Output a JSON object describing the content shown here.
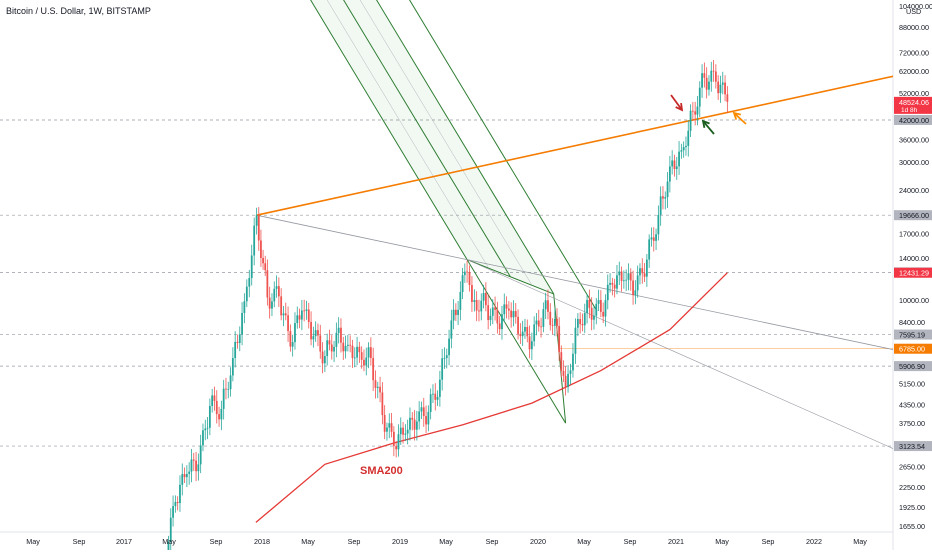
{
  "header": {
    "title": "Bitcoin / U.S. Dollar, 1W, BITSTAMP"
  },
  "chart_data": {
    "type": "candlestick",
    "title": "Bitcoin / U.S. Dollar, 1W, BITSTAMP",
    "yscale": "log",
    "currency": "USD",
    "ylim": [
      1600,
      105000
    ],
    "grid": false,
    "x_ticks": [
      "May",
      "Sep",
      "2017",
      "May",
      "Sep",
      "2018",
      "May",
      "Sep",
      "2019",
      "May",
      "Sep",
      "2020",
      "May",
      "Sep",
      "2021",
      "May",
      "Sep",
      "2022",
      "May"
    ],
    "y_ticks": [
      "104000.00",
      "88000.00",
      "72000.00",
      "62000.00",
      "52000.00",
      "42000.00",
      "36000.00",
      "30000.00",
      "24000.00",
      "19666.00",
      "17000.00",
      "14000.00",
      "12467.74",
      "10000.00",
      "8400.00",
      "7595.19",
      "5906.90",
      "5150.00",
      "4350.00",
      "3750.00",
      "3123.54",
      "2650.00",
      "2250.00",
      "1925.00",
      "1655.00"
    ],
    "price_labels": [
      {
        "value": "48524.06",
        "sub": "1d 8h",
        "color": "#f23645"
      },
      {
        "value": "42000.00",
        "color": "#b2b5be"
      },
      {
        "value": "19666.00",
        "color": "#b2b5be"
      },
      {
        "value": "12467.74",
        "color": "#b2b5be"
      },
      {
        "value": "12431.29",
        "color": "#f23645"
      },
      {
        "value": "7595.19",
        "color": "#b2b5be"
      },
      {
        "value": "6785.00",
        "color": "#f57c00"
      },
      {
        "value": "5906.90",
        "color": "#b2b5be"
      },
      {
        "value": "3123.54",
        "color": "#b2b5be"
      }
    ],
    "horizontal_levels": [
      42000,
      19666,
      12467.74,
      7595.19,
      5906.9,
      3123.54
    ],
    "weekly_closes": [
      {
        "date": "2017-04",
        "close": 1200
      },
      {
        "date": "2017-05",
        "close": 2000
      },
      {
        "date": "2017-06",
        "close": 2500
      },
      {
        "date": "2017-07",
        "close": 2700
      },
      {
        "date": "2017-08",
        "close": 4300
      },
      {
        "date": "2017-09",
        "close": 4200
      },
      {
        "date": "2017-10",
        "close": 6300
      },
      {
        "date": "2017-11",
        "close": 9900
      },
      {
        "date": "2017-12-17",
        "close": 19666
      },
      {
        "date": "2018-01",
        "close": 10200
      },
      {
        "date": "2018-02",
        "close": 10300
      },
      {
        "date": "2018-03",
        "close": 6900
      },
      {
        "date": "2018-04",
        "close": 9200
      },
      {
        "date": "2018-05",
        "close": 7500
      },
      {
        "date": "2018-06",
        "close": 6400
      },
      {
        "date": "2018-07",
        "close": 7700
      },
      {
        "date": "2018-08",
        "close": 7000
      },
      {
        "date": "2018-09",
        "close": 6600
      },
      {
        "date": "2018-10",
        "close": 6300
      },
      {
        "date": "2018-11",
        "close": 4000
      },
      {
        "date": "2018-12-15",
        "close": 3123.54
      },
      {
        "date": "2019-01",
        "close": 3450
      },
      {
        "date": "2019-02",
        "close": 3800
      },
      {
        "date": "2019-03",
        "close": 4100
      },
      {
        "date": "2019-04",
        "close": 5300
      },
      {
        "date": "2019-05",
        "close": 8500
      },
      {
        "date": "2019-06-26",
        "close": 12500
      },
      {
        "date": "2019-07",
        "close": 10000
      },
      {
        "date": "2019-08",
        "close": 9600
      },
      {
        "date": "2019-09",
        "close": 8300
      },
      {
        "date": "2019-10",
        "close": 9200
      },
      {
        "date": "2019-11",
        "close": 7500
      },
      {
        "date": "2019-12",
        "close": 7200
      },
      {
        "date": "2020-01",
        "close": 9300
      },
      {
        "date": "2020-02",
        "close": 8600
      },
      {
        "date": "2020-03-13",
        "close": 5000
      },
      {
        "date": "2020-04",
        "close": 8600
      },
      {
        "date": "2020-05",
        "close": 9400
      },
      {
        "date": "2020-06",
        "close": 9100
      },
      {
        "date": "2020-07",
        "close": 11300
      },
      {
        "date": "2020-08",
        "close": 11700
      },
      {
        "date": "2020-09",
        "close": 10800
      },
      {
        "date": "2020-10",
        "close": 13800
      },
      {
        "date": "2020-11",
        "close": 19700
      },
      {
        "date": "2020-12",
        "close": 29000
      },
      {
        "date": "2021-01",
        "close": 33000
      },
      {
        "date": "2021-02",
        "close": 45000
      },
      {
        "date": "2021-03",
        "close": 58800
      },
      {
        "date": "2021-04",
        "close": 57000
      },
      {
        "date": "2021-05",
        "close": 48524.06
      }
    ],
    "sma200_values": [
      {
        "date": "2017-12",
        "value": 1700
      },
      {
        "date": "2018-06",
        "value": 2700
      },
      {
        "date": "2018-12",
        "value": 3200
      },
      {
        "date": "2019-06",
        "value": 3700
      },
      {
        "date": "2019-12",
        "value": 4400
      },
      {
        "date": "2020-06",
        "value": 5700
      },
      {
        "date": "2020-12",
        "value": 7900
      },
      {
        "date": "2021-05",
        "value": 12431.29
      }
    ],
    "annotations": [
      {
        "text": "SMA200",
        "color": "#d32f2f"
      }
    ]
  }
}
